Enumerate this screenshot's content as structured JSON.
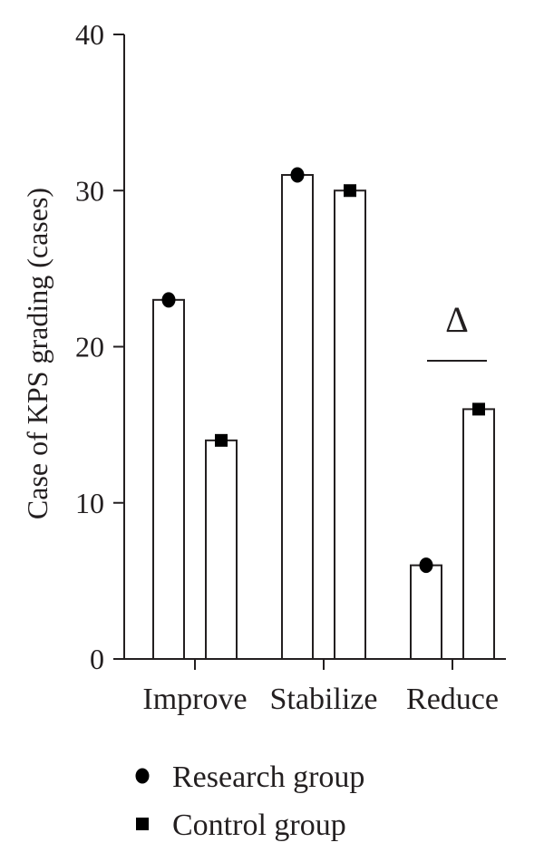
{
  "chart_data": {
    "type": "bar",
    "ylabel": "Case of KPS grading (cases)",
    "xlabel": "",
    "ylim": [
      0,
      40
    ],
    "yticks": [
      0,
      10,
      20,
      30,
      40
    ],
    "categories": [
      "Improve",
      "Stabilize",
      "Reduce"
    ],
    "series": [
      {
        "name": "Research group",
        "marker": "circle",
        "values": [
          23,
          31,
          6
        ]
      },
      {
        "name": "Control group",
        "marker": "square",
        "values": [
          14,
          30,
          16
        ]
      }
    ],
    "legend_position": "bottom-left",
    "grid": false,
    "annotations": [
      {
        "text": "Δ",
        "category": "Reduce",
        "note_type": "significance-bracket"
      }
    ],
    "bar_fill": "#ffffff",
    "bar_stroke": "#231f20",
    "marker_color": "#000000"
  }
}
